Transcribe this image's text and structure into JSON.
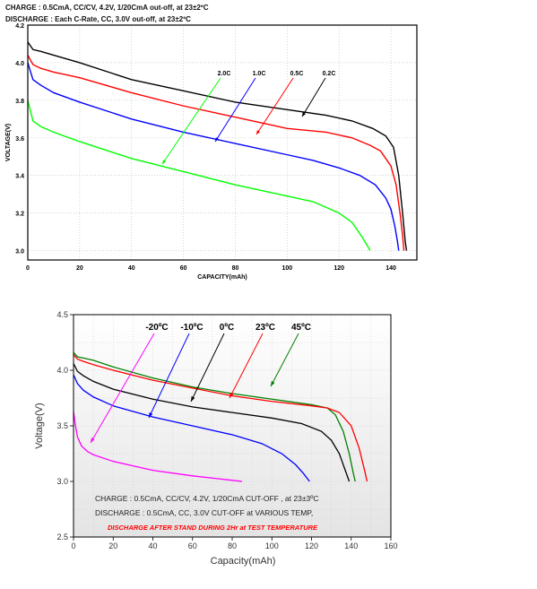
{
  "chart_data": [
    {
      "type": "line",
      "title_lines": [
        "CHARGE : 0.5CmA, CC/CV, 4.2V, 1/20CmA out-off, at 23±2ºC",
        "DISCHARGE : Each C-Rate, CC, 3.0V out-off, at 23±2ºC"
      ],
      "xlabel": "CAPACITY(mAh)",
      "ylabel": "VOLTAGE(V)",
      "xlim": [
        0,
        150
      ],
      "ylim": [
        2.95,
        4.2
      ],
      "xticks": [
        "0",
        "20",
        "40",
        "60",
        "80",
        "100",
        "120",
        "140"
      ],
      "yticks": [
        "3.0",
        "3.2",
        "3.4",
        "3.6",
        "3.8",
        "4.0",
        "4.2"
      ],
      "grid": true,
      "series": [
        {
          "name": "0.2C",
          "color": "#000000",
          "x": [
            0,
            2,
            5,
            10,
            20,
            40,
            60,
            80,
            100,
            115,
            125,
            133,
            138,
            141,
            143,
            144.5,
            145.5,
            146
          ],
          "y": [
            4.11,
            4.07,
            4.06,
            4.04,
            4.0,
            3.91,
            3.85,
            3.79,
            3.75,
            3.72,
            3.69,
            3.65,
            3.61,
            3.55,
            3.4,
            3.2,
            3.05,
            3.0
          ]
        },
        {
          "name": "0.5C",
          "color": "#ff0000",
          "x": [
            0,
            2,
            5,
            10,
            20,
            40,
            60,
            80,
            100,
            115,
            125,
            132,
            136,
            140,
            142,
            143.5,
            144.5,
            145
          ],
          "y": [
            4.04,
            3.99,
            3.97,
            3.95,
            3.92,
            3.84,
            3.77,
            3.71,
            3.65,
            3.63,
            3.6,
            3.56,
            3.53,
            3.45,
            3.35,
            3.2,
            3.08,
            3.0
          ]
        },
        {
          "name": "1.0C",
          "color": "#0000ff",
          "x": [
            0,
            2,
            5,
            10,
            20,
            40,
            60,
            80,
            100,
            110,
            120,
            128,
            134,
            138,
            140,
            141.5,
            142.5,
            143
          ],
          "y": [
            4.0,
            3.91,
            3.88,
            3.84,
            3.79,
            3.7,
            3.63,
            3.57,
            3.51,
            3.48,
            3.44,
            3.4,
            3.35,
            3.28,
            3.22,
            3.13,
            3.05,
            3.0
          ]
        },
        {
          "name": "2.0C",
          "color": "#00ff00",
          "x": [
            0,
            2,
            5,
            10,
            20,
            40,
            60,
            80,
            100,
            110,
            120,
            125,
            129,
            132
          ],
          "y": [
            3.8,
            3.69,
            3.66,
            3.63,
            3.58,
            3.49,
            3.42,
            3.35,
            3.29,
            3.26,
            3.2,
            3.15,
            3.07,
            3.0
          ]
        }
      ],
      "legend_labels": [
        "2.0C",
        "1.0C",
        "0.5C",
        "0.2C"
      ]
    },
    {
      "type": "line",
      "xlabel": "Capacity(mAh)",
      "ylabel": "Voltage(V)",
      "xlim": [
        0,
        160
      ],
      "ylim": [
        2.5,
        4.5
      ],
      "xticks": [
        "0",
        "20",
        "40",
        "60",
        "80",
        "100",
        "120",
        "140",
        "160"
      ],
      "yticks": [
        "2.5",
        "3.0",
        "3.5",
        "4.0",
        "4.5"
      ],
      "grid": true,
      "series": [
        {
          "name": "45ºC",
          "color": "#008000",
          "x": [
            0,
            2,
            5,
            10,
            20,
            40,
            60,
            80,
            100,
            120,
            128,
            132,
            136,
            139,
            141,
            142
          ],
          "y": [
            4.16,
            4.12,
            4.11,
            4.09,
            4.03,
            3.93,
            3.85,
            3.79,
            3.74,
            3.69,
            3.66,
            3.6,
            3.45,
            3.25,
            3.08,
            3.0
          ]
        },
        {
          "name": "23ºC",
          "color": "#ff0000",
          "x": [
            0,
            2,
            5,
            10,
            20,
            40,
            60,
            80,
            100,
            120,
            128,
            134,
            140,
            144,
            147,
            148
          ],
          "y": [
            4.14,
            4.1,
            4.08,
            4.05,
            4.0,
            3.91,
            3.84,
            3.77,
            3.72,
            3.68,
            3.66,
            3.62,
            3.5,
            3.3,
            3.08,
            3.0
          ]
        },
        {
          "name": "0ºC",
          "color": "#000000",
          "x": [
            0,
            2,
            5,
            10,
            20,
            40,
            60,
            80,
            100,
            115,
            125,
            130,
            134,
            137,
            139
          ],
          "y": [
            4.06,
            3.99,
            3.95,
            3.9,
            3.83,
            3.74,
            3.67,
            3.62,
            3.57,
            3.52,
            3.45,
            3.37,
            3.25,
            3.1,
            3.0
          ]
        },
        {
          "name": "-10ºC",
          "color": "#0000ff",
          "x": [
            0,
            2,
            5,
            10,
            20,
            40,
            60,
            80,
            95,
            105,
            112,
            116,
            119
          ],
          "y": [
            3.96,
            3.88,
            3.82,
            3.76,
            3.68,
            3.58,
            3.5,
            3.42,
            3.34,
            3.25,
            3.15,
            3.07,
            3.0
          ]
        },
        {
          "name": "-20ºC",
          "color": "#ff00ff",
          "x": [
            0,
            1,
            2,
            4,
            7,
            10,
            20,
            40,
            60,
            75,
            85
          ],
          "y": [
            3.63,
            3.5,
            3.4,
            3.32,
            3.27,
            3.24,
            3.18,
            3.1,
            3.05,
            3.02,
            3.0
          ]
        }
      ],
      "legend_labels": [
        "-20ºC",
        "-10ºC",
        "0ºC",
        "23ºC",
        "45ºC"
      ],
      "annotations": [
        {
          "text": "CHARGE      : 0.5CmA, CC/CV, 4.2V, 1/20CmA CUT-OFF , at 23±3ºC",
          "color": "#222222"
        },
        {
          "text": "DISCHARGE : 0.5CmA, CC, 3.0V CUT-OFF at VARIOUS TEMP,",
          "color": "#222222"
        },
        {
          "text": "DISCHARGE AFTER STAND DURING 2Hr at TEST TEMPERATURE",
          "color": "#ff0000"
        }
      ]
    }
  ]
}
